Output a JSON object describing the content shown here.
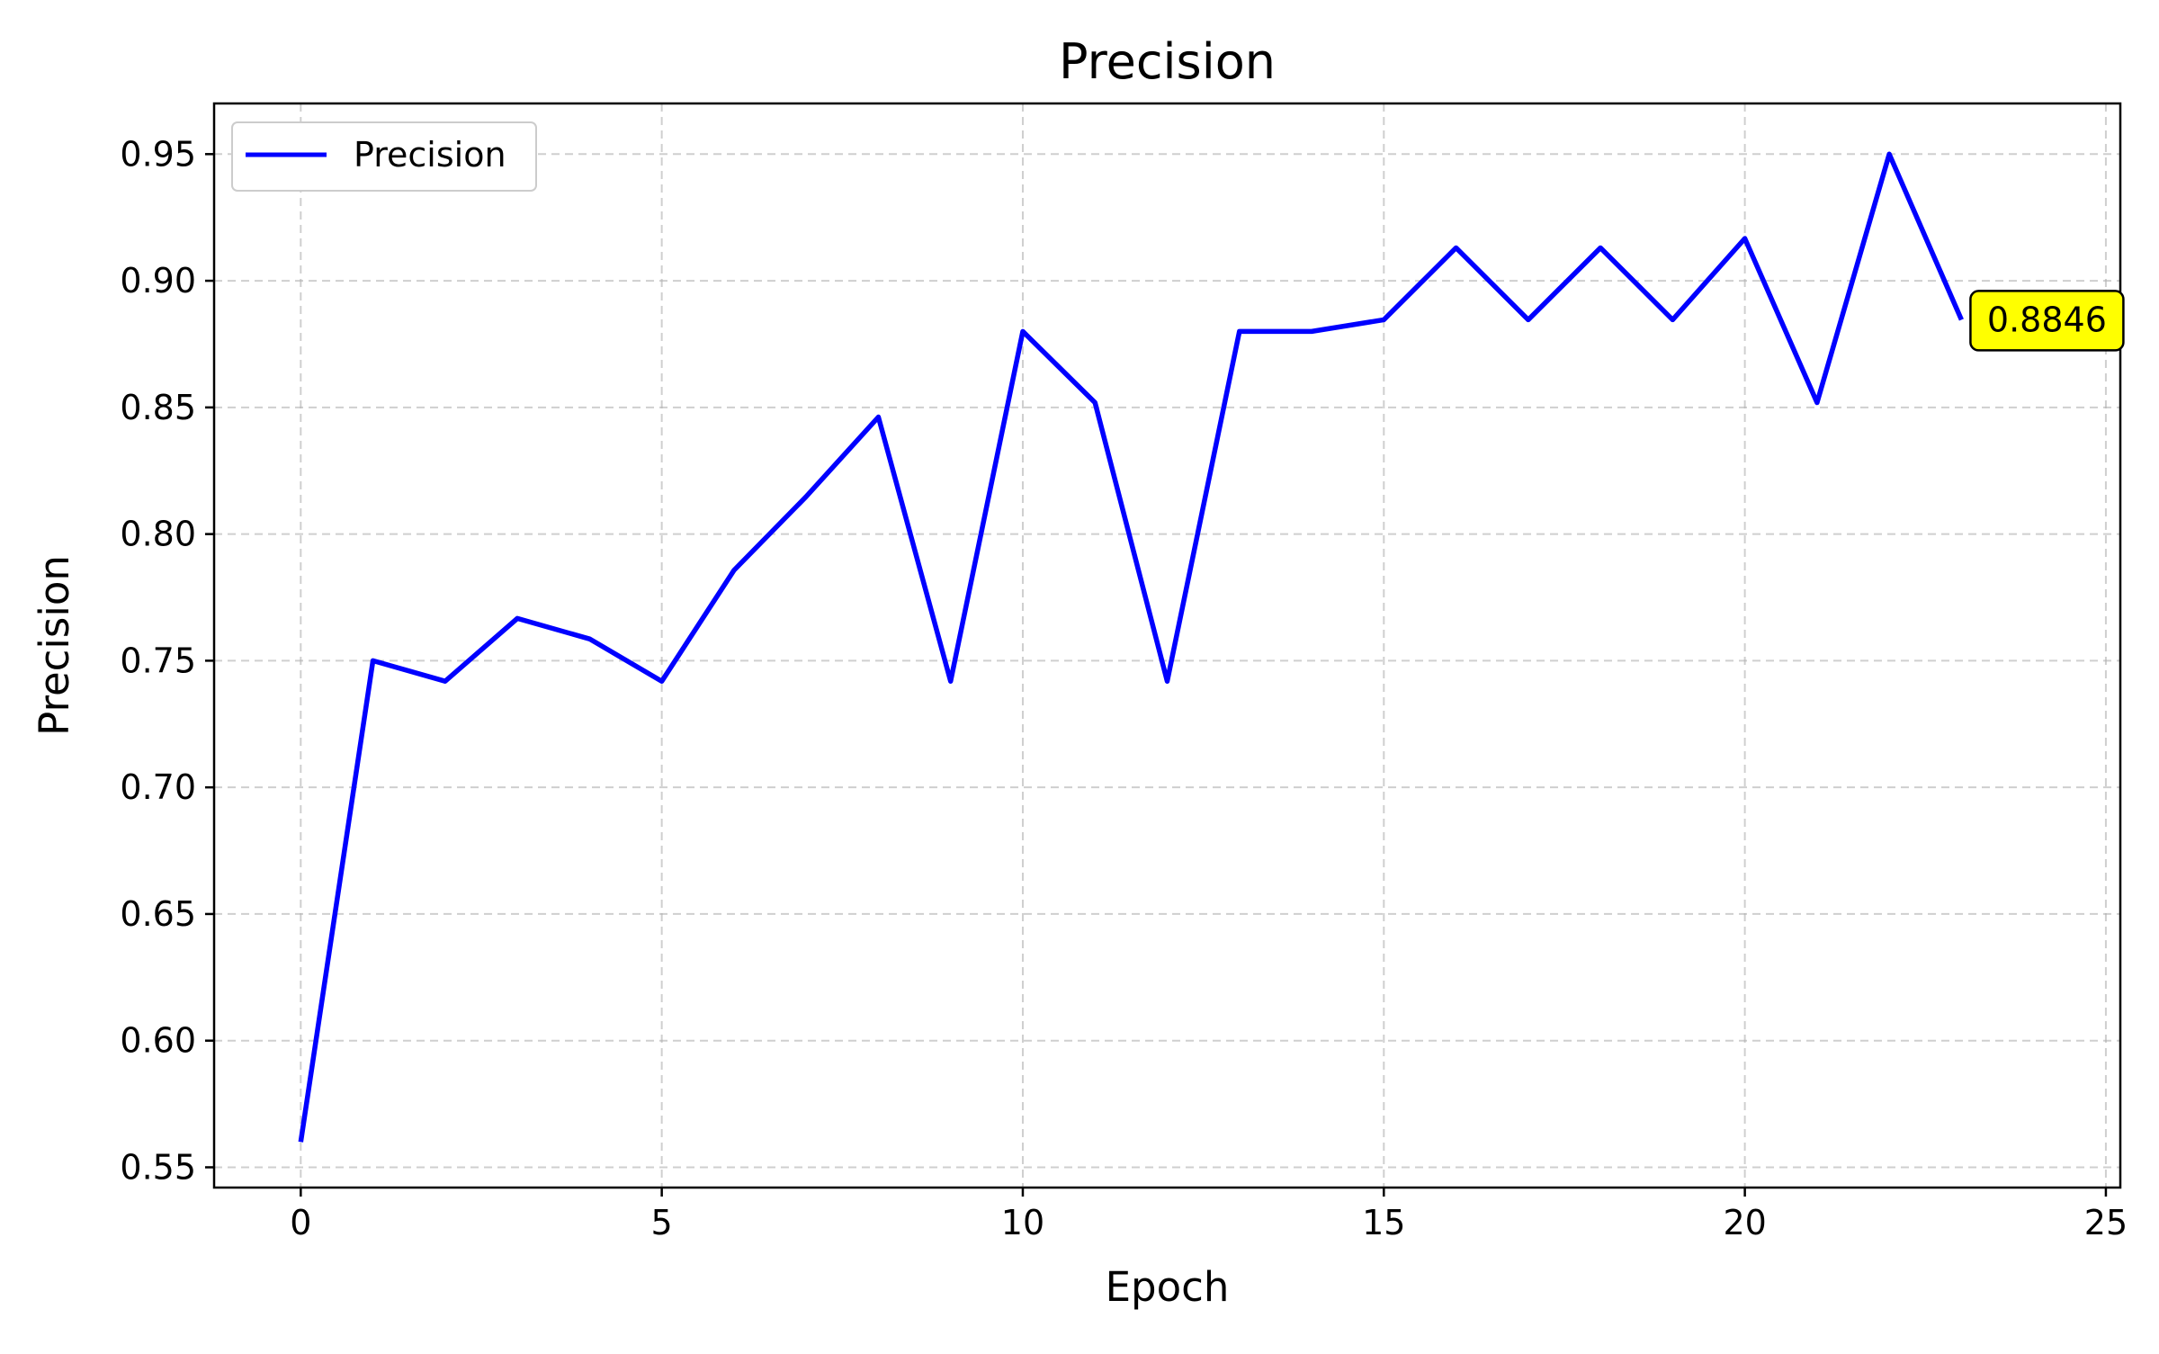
{
  "chart_data": {
    "type": "line",
    "title": "Precision",
    "xlabel": "Epoch",
    "ylabel": "Precision",
    "x": [
      0,
      1,
      2,
      3,
      4,
      5,
      6,
      7,
      8,
      9,
      10,
      11,
      12,
      13,
      14,
      15,
      16,
      17,
      18,
      19,
      20,
      21,
      22,
      23
    ],
    "series": [
      {
        "name": "Precision",
        "color": "#0000ff",
        "values": [
          0.56,
          0.75,
          0.7419,
          0.7667,
          0.7586,
          0.7419,
          0.7857,
          0.8148,
          0.8462,
          0.7419,
          0.88,
          0.8519,
          0.7419,
          0.88,
          0.88,
          0.8846,
          0.913,
          0.8846,
          0.913,
          0.8846,
          0.9167,
          0.8519,
          0.95,
          0.8846
        ]
      }
    ],
    "xlim": [
      -1.2,
      25.2
    ],
    "ylim": [
      0.542,
      0.97
    ],
    "xticks": [
      0,
      5,
      10,
      15,
      20,
      25
    ],
    "xtick_labels": [
      "0",
      "5",
      "10",
      "15",
      "20",
      "25"
    ],
    "yticks": [
      0.55,
      0.6,
      0.65,
      0.7,
      0.75,
      0.8,
      0.85,
      0.9,
      0.95
    ],
    "ytick_labels": [
      "0.55",
      "0.60",
      "0.65",
      "0.70",
      "0.75",
      "0.80",
      "0.85",
      "0.90",
      "0.95"
    ],
    "grid": true,
    "legend": {
      "position": "upper-left",
      "entries": [
        "Precision"
      ]
    },
    "annotation": {
      "text": "0.8846",
      "x": 23,
      "y": 0.8846,
      "background": "#ffff00"
    }
  }
}
